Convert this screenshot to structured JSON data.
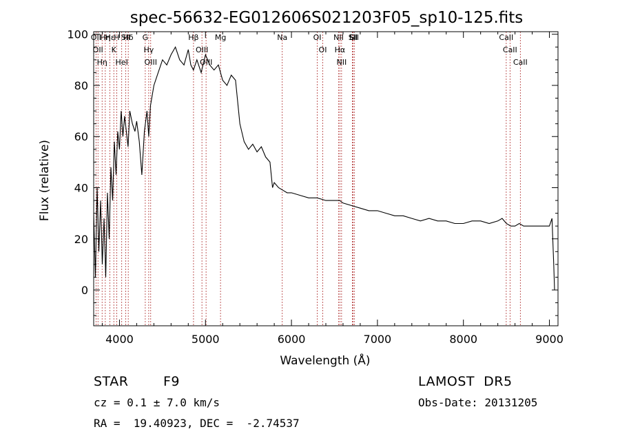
{
  "chart_data": {
    "type": "line",
    "title": "spec-56632-EG012606S021203F05_sp10-125.fits",
    "xlabel": "Wavelength (Å)",
    "ylabel": "Flux (relative)",
    "xlim": [
      3700,
      9100
    ],
    "ylim": [
      -14,
      101
    ],
    "xticks": [
      4000,
      5000,
      6000,
      7000,
      8000,
      9000
    ],
    "yticks": [
      0,
      20,
      40,
      60,
      80,
      100
    ],
    "grid": false,
    "series": [
      {
        "x": [
          3700,
          3720,
          3740,
          3760,
          3780,
          3800,
          3820,
          3840,
          3860,
          3880,
          3900,
          3920,
          3940,
          3960,
          3980,
          4000,
          4020,
          4040,
          4060,
          4080,
          4100,
          4120,
          4150,
          4180,
          4200,
          4230,
          4260,
          4290,
          4320,
          4340,
          4360,
          4400,
          4450,
          4500,
          4550,
          4600,
          4650,
          4700,
          4750,
          4800,
          4830,
          4860,
          4900,
          4950,
          5000,
          5050,
          5100,
          5150,
          5200,
          5250,
          5300,
          5350,
          5400,
          5450,
          5500,
          5550,
          5600,
          5650,
          5700,
          5750,
          5780,
          5800,
          5850,
          5900,
          5950,
          6000,
          6100,
          6200,
          6300,
          6400,
          6500,
          6560,
          6600,
          6700,
          6800,
          6900,
          7000,
          7100,
          7200,
          7300,
          7400,
          7500,
          7600,
          7700,
          7800,
          7900,
          8000,
          8100,
          8200,
          8300,
          8400,
          8450,
          8500,
          8550,
          8600,
          8650,
          8700,
          8800,
          8900,
          9000,
          9030,
          9050,
          9060
        ],
        "y": [
          30,
          5,
          40,
          15,
          35,
          10,
          28,
          5,
          38,
          20,
          48,
          35,
          58,
          45,
          62,
          55,
          70,
          60,
          68,
          62,
          56,
          70,
          65,
          62,
          66,
          58,
          45,
          62,
          70,
          60,
          72,
          80,
          85,
          90,
          88,
          92,
          95,
          90,
          88,
          94,
          88,
          86,
          90,
          85,
          92,
          88,
          86,
          88,
          82,
          80,
          84,
          82,
          65,
          58,
          55,
          57,
          54,
          56,
          52,
          50,
          40,
          42,
          40,
          39,
          38,
          38,
          37,
          36,
          36,
          35,
          35,
          35,
          34,
          33,
          32,
          31,
          31,
          30,
          29,
          29,
          28,
          27,
          28,
          27,
          27,
          26,
          26,
          27,
          27,
          26,
          27,
          28,
          26,
          25,
          25,
          26,
          25,
          25,
          25,
          25,
          28,
          10,
          0
        ]
      }
    ],
    "line_markers": [
      {
        "x": 3727,
        "label": "OII"
      },
      {
        "x": 3750,
        "label": "OII"
      },
      {
        "x": 3798,
        "label": "Hη"
      },
      {
        "x": 3835,
        "label": "Hη"
      },
      {
        "x": 3889,
        "label": "Hε"
      },
      {
        "x": 3934,
        "label": "K"
      },
      {
        "x": 3968,
        "label": "H"
      },
      {
        "x": 4026,
        "label": "HeI"
      },
      {
        "x": 4072,
        "label": "SII"
      },
      {
        "x": 4102,
        "label": "Hδ"
      },
      {
        "x": 4300,
        "label": "G"
      },
      {
        "x": 4340,
        "label": "Hγ"
      },
      {
        "x": 4363,
        "label": "OIII"
      },
      {
        "x": 4861,
        "label": "Hβ"
      },
      {
        "x": 4959,
        "label": "OIII"
      },
      {
        "x": 5007,
        "label": "OIII"
      },
      {
        "x": 5175,
        "label": "Mg"
      },
      {
        "x": 5893,
        "label": "Na"
      },
      {
        "x": 6300,
        "label": "OI"
      },
      {
        "x": 6364,
        "label": "OI"
      },
      {
        "x": 6548,
        "label": "NII"
      },
      {
        "x": 6563,
        "label": "Hα"
      },
      {
        "x": 6583,
        "label": "NII"
      },
      {
        "x": 6708,
        "label": "Li"
      },
      {
        "x": 6716,
        "label": "SII"
      },
      {
        "x": 6731,
        "label": "SII"
      },
      {
        "x": 8498,
        "label": "CaII"
      },
      {
        "x": 8542,
        "label": "CaII"
      },
      {
        "x": 8662,
        "label": "CaII"
      }
    ],
    "marker_color": "#b03030"
  },
  "info": {
    "object_class": "STAR",
    "subclass": "F9",
    "survey": "LAMOST  DR5",
    "cz": "cz = 0.1 ± 7.0 km/s",
    "obs_date": "Obs-Date: 20131205",
    "coords": "RA =  19.40923, DEC =  -2.74537"
  }
}
